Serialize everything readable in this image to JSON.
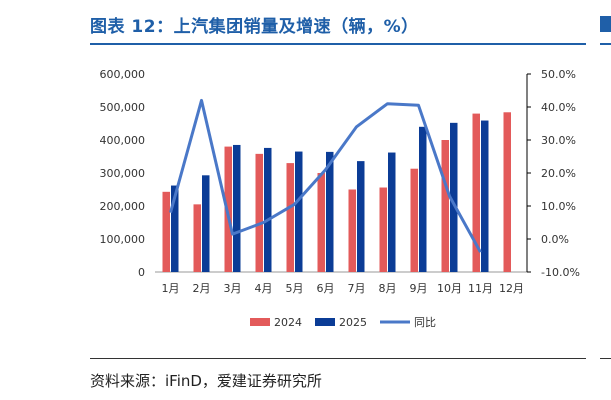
{
  "title": "图表 12：上汽集团销量及增速（辆，%）",
  "source": "资料来源：iFinD，爱建证券研究所",
  "colors": {
    "series_2024": "#e35a5a",
    "series_2025": "#0b3c96",
    "yoy_line": "#4a78c8",
    "title": "#1f5fa8"
  },
  "chart_data": {
    "type": "bar",
    "categories": [
      "1月",
      "2月",
      "3月",
      "4月",
      "5月",
      "6月",
      "7月",
      "8月",
      "9月",
      "10月",
      "11月",
      "12月"
    ],
    "series": [
      {
        "name": "2024",
        "type": "bar",
        "axis": "left",
        "values": [
          243000,
          205000,
          380000,
          358000,
          330000,
          300000,
          250000,
          256000,
          313000,
          400000,
          480000,
          484000
        ]
      },
      {
        "name": "2025",
        "type": "bar",
        "axis": "left",
        "values": [
          262000,
          293000,
          385000,
          376000,
          365000,
          364000,
          336000,
          362000,
          440000,
          452000,
          459000,
          null
        ]
      },
      {
        "name": "同比",
        "type": "line",
        "axis": "right",
        "values": [
          8.0,
          42.0,
          1.5,
          5.0,
          10.5,
          21.0,
          34.0,
          41.0,
          40.5,
          13.0,
          -4.0,
          null
        ]
      }
    ],
    "yaxis_left": {
      "ticks": [
        "600,000",
        "500,000",
        "400,000",
        "300,000",
        "200,000",
        "100,000",
        "0"
      ],
      "ylim": [
        0,
        600000
      ]
    },
    "yaxis_right": {
      "ticks": [
        "50.0%",
        "40.0%",
        "30.0%",
        "20.0%",
        "10.0%",
        "0.0%",
        "-10.0%"
      ],
      "ylim": [
        -10,
        50
      ]
    },
    "legend_placement": "bottom-center",
    "grid": false
  }
}
